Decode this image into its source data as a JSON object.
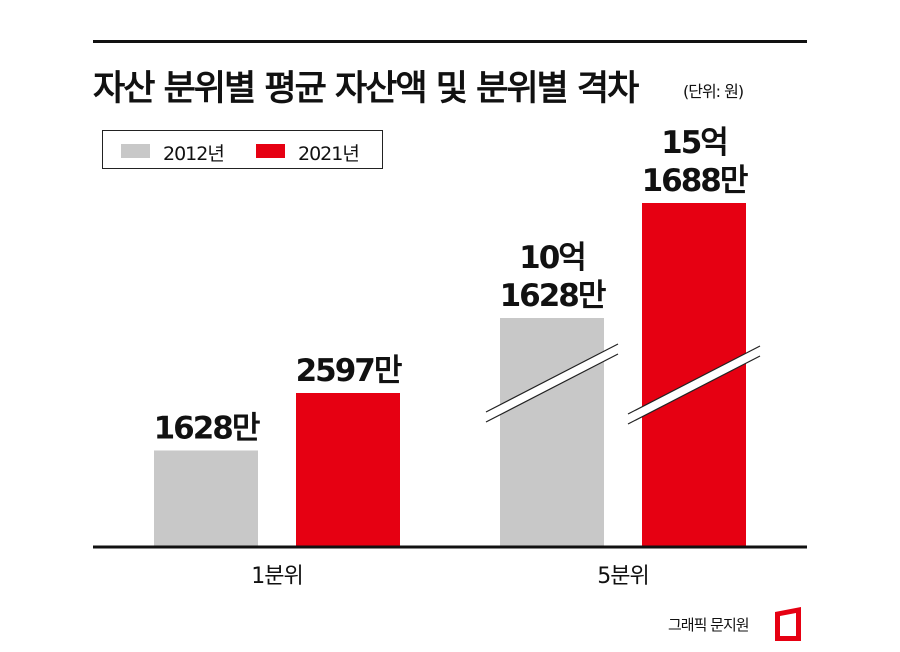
{
  "title": "자산 분위별 평균 자산액 및 분위별 격차",
  "unit": "(단위: 원)",
  "credit": "그래픽 문지원",
  "colors": {
    "series_2012": "#c8c8c8",
    "series_2021": "#e60012",
    "axis": "#111111"
  },
  "chart_data": {
    "type": "bar",
    "title": "자산 분위별 평균 자산액 및 분위별 격차",
    "unit": "원",
    "categories": [
      "1분위",
      "5분위"
    ],
    "series": [
      {
        "name": "2012년",
        "values": [
          16280000,
          1016280000
        ],
        "labels": [
          "1628만",
          "10억\n1628만"
        ]
      },
      {
        "name": "2021년",
        "values": [
          25970000,
          1516880000
        ],
        "labels": [
          "2597만",
          "15억\n1688만"
        ]
      }
    ],
    "axis_break": {
      "category": "5분위",
      "note": "break marks on 5분위 bars"
    },
    "legend_position": "top-left"
  }
}
